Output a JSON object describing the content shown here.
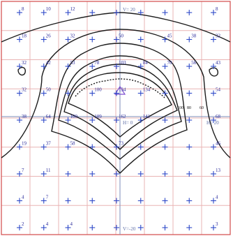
{
  "axis_labels": {
    "v_top": "V= 20",
    "v_bottom": "V=-20",
    "h_left": "H= 0",
    "h_right": "H= 20"
  },
  "contour_labels": [
    "100",
    "80",
    "60"
  ],
  "values": [
    [
      "8",
      "10",
      "12",
      "",
      "",
      "",
      "",
      "",
      "8"
    ],
    [
      "18",
      "26",
      "32",
      "",
      "50",
      "",
      "45",
      "38",
      "32"
    ],
    [
      "32",
      "42",
      "53",
      "78",
      "103",
      "84",
      "70",
      "56",
      "43"
    ],
    [
      "32",
      "50",
      "",
      "100",
      "134",
      "134",
      "",
      "",
      "54"
    ],
    [
      "38",
      "64",
      "100",
      "109",
      "162",
      "141",
      "",
      "",
      "68"
    ],
    [
      "19",
      "37",
      "58",
      "",
      "73",
      "",
      "",
      "",
      "46"
    ],
    [
      "7",
      "11",
      "",
      "",
      "",
      "",
      "",
      "",
      "13"
    ],
    [
      "4",
      "7",
      "",
      "",
      "",
      "",
      "",
      "",
      "4"
    ],
    [
      "2",
      "4",
      "4",
      "",
      "",
      "",
      "",
      "",
      "3"
    ]
  ],
  "colors": {
    "grid": "#e9b4b4",
    "border": "#d24a4a",
    "marker": "#2e49c8",
    "contour": "#1b1b1b",
    "axis": "#7d8db8"
  }
}
